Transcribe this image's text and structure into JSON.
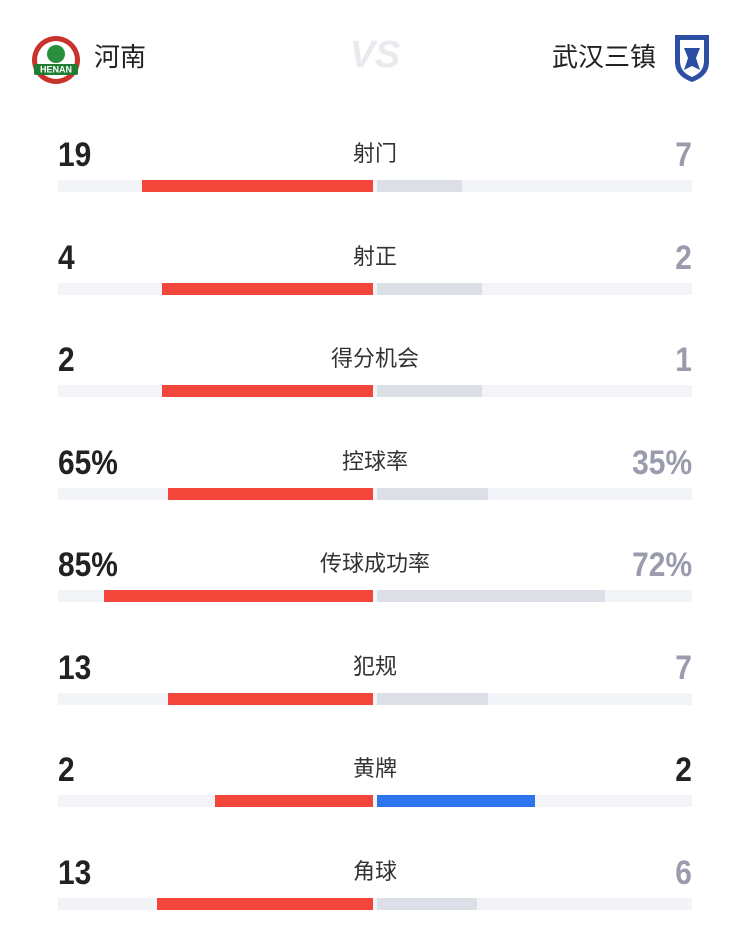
{
  "header": {
    "home_team": "河南",
    "home_badge_text": "HENAN",
    "vs": "VS",
    "away_team": "武汉三镇"
  },
  "colors": {
    "home": "#f2463a",
    "away": "#dcdfe5",
    "tie": "#2f74ef",
    "track": "#f3f4f7"
  },
  "stats": [
    {
      "label": "射门",
      "home": 19,
      "away": 7
    },
    {
      "label": "射正",
      "home": 4,
      "away": 2
    },
    {
      "label": "得分机会",
      "home": 2,
      "away": 1
    },
    {
      "label": "控球率",
      "home": 65,
      "away": 35,
      "home_label": "65%",
      "away_label": "35%"
    },
    {
      "label": "传球成功率",
      "home": 85,
      "away": 72,
      "home_label": "85%",
      "away_label": "72%"
    },
    {
      "label": "犯规",
      "home": 13,
      "away": 7
    },
    {
      "label": "黄牌",
      "home": 2,
      "away": 2
    },
    {
      "label": "角球",
      "home": 13,
      "away": 6
    }
  ]
}
